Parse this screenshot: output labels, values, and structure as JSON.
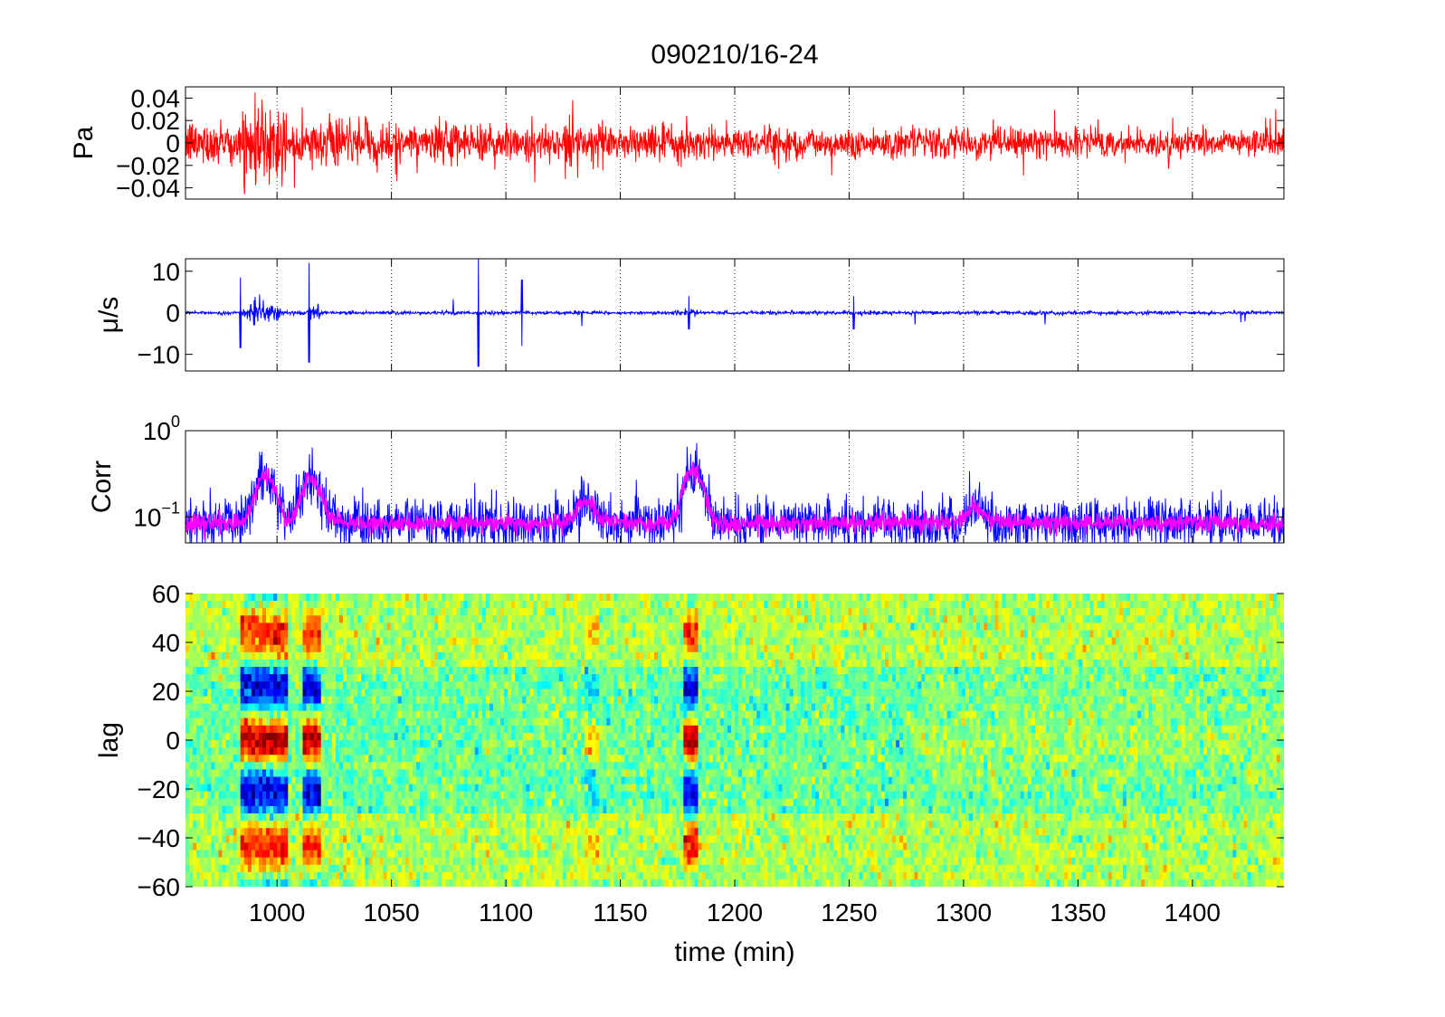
{
  "figure": {
    "title": "090210/16-24",
    "xlabel": "time (min)",
    "xlim": [
      960,
      1440
    ],
    "xticks": [
      1000,
      1050,
      1100,
      1150,
      1200,
      1250,
      1300,
      1350,
      1400
    ]
  },
  "chart_data": [
    {
      "type": "line",
      "ylabel": "Pa",
      "ylim": [
        -0.05,
        0.05
      ],
      "yticks": [
        "0.04",
        "0.02",
        "0",
        "-0.02",
        "-0.04"
      ],
      "ytick_values": [
        0.04,
        0.02,
        0,
        -0.02,
        -0.04
      ],
      "series": [
        {
          "color": "#ff0000",
          "description_values": "pressure time series, amplitude ~±0.01 with spikes to ±0.04"
        }
      ],
      "grid": "x-dotted"
    },
    {
      "type": "line",
      "ylabel": "μ/s",
      "ylim": [
        -14,
        13
      ],
      "yticks": [
        "10",
        "0",
        "-10"
      ],
      "ytick_values": [
        10,
        0,
        -10
      ],
      "series": [
        {
          "color": "#0000ff"
        }
      ],
      "events": [
        {
          "x": 984,
          "amp": 8.5
        },
        {
          "x": 990,
          "amp": 3
        },
        {
          "x": 1014,
          "amp": 12
        },
        {
          "x": 1088,
          "amp": 13
        },
        {
          "x": 1107,
          "amp": 8
        },
        {
          "x": 1180,
          "amp": 4
        },
        {
          "x": 1252,
          "amp": 4
        }
      ],
      "grid": "x-dotted"
    },
    {
      "type": "line",
      "ylabel": "Corr",
      "yscale": "log",
      "ylim": [
        0.05,
        1
      ],
      "yticks": [
        "10^0",
        "10^-1"
      ],
      "ytick_values": [
        1,
        0.1
      ],
      "series": [
        {
          "color": "#0000ff"
        },
        {
          "color": "#ff00ff"
        }
      ],
      "peaks": [
        {
          "x": 995,
          "value": 0.32
        },
        {
          "x": 1015,
          "value": 0.28
        },
        {
          "x": 1135,
          "value": 0.15
        },
        {
          "x": 1182,
          "value": 0.35
        },
        {
          "x": 1305,
          "value": 0.13
        }
      ],
      "grid": "x-dotted"
    },
    {
      "type": "heatmap",
      "ylabel": "lag",
      "ylim": [
        -60,
        60
      ],
      "yticks": [
        "60",
        "40",
        "20",
        "0",
        "-20",
        "-40",
        "-60"
      ],
      "ytick_values": [
        60,
        40,
        20,
        0,
        -20,
        -40,
        -60
      ],
      "colormap": "jet",
      "features": [
        {
          "x_start": 985,
          "x_end": 1003,
          "pattern": "strong"
        },
        {
          "x_start": 1013,
          "x_end": 1018,
          "pattern": "strong"
        },
        {
          "x_start": 1135,
          "x_end": 1139,
          "pattern": "weak"
        },
        {
          "x_start": 1179,
          "x_end": 1183,
          "pattern": "strong"
        }
      ]
    }
  ]
}
